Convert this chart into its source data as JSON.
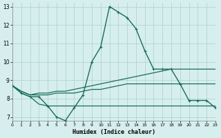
{
  "xlabel": "Humidex (Indice chaleur)",
  "background_color": "#d6eeee",
  "grid_color": "#a8d0d0",
  "line_color": "#1a6b5a",
  "xlim": [
    0,
    23
  ],
  "ylim": [
    6.8,
    13.2
  ],
  "yticks": [
    7,
    8,
    9,
    10,
    11,
    12,
    13
  ],
  "xticks": [
    0,
    1,
    2,
    3,
    4,
    5,
    6,
    7,
    8,
    9,
    10,
    11,
    12,
    13,
    14,
    15,
    16,
    17,
    18,
    19,
    20,
    21,
    22,
    23
  ],
  "series": [
    {
      "x": [
        0,
        1,
        2,
        3,
        4,
        5,
        6,
        7,
        8,
        9,
        10,
        11,
        12,
        13,
        14,
        15,
        16,
        17,
        18,
        19,
        20,
        21,
        22,
        23
      ],
      "y": [
        8.7,
        8.3,
        8.1,
        8.1,
        7.6,
        7.0,
        6.8,
        7.5,
        8.2,
        10.0,
        10.8,
        13.0,
        12.7,
        12.4,
        11.8,
        10.6,
        9.6,
        9.6,
        9.6,
        8.8,
        7.9,
        7.9,
        7.9,
        7.5
      ],
      "marker": true,
      "linewidth": 1.0
    },
    {
      "x": [
        0,
        1,
        2,
        3,
        4,
        5,
        6,
        7,
        8,
        9,
        10,
        11,
        12,
        13,
        14,
        15,
        16,
        17,
        18,
        19,
        20,
        21,
        22,
        23
      ],
      "y": [
        8.7,
        8.4,
        8.2,
        8.3,
        8.3,
        8.4,
        8.4,
        8.5,
        8.6,
        8.7,
        8.8,
        8.9,
        9.0,
        9.1,
        9.2,
        9.3,
        9.4,
        9.5,
        9.6,
        9.6,
        9.6,
        9.6,
        9.6,
        9.6
      ],
      "marker": false,
      "linewidth": 0.9
    },
    {
      "x": [
        0,
        1,
        2,
        3,
        4,
        5,
        6,
        7,
        8,
        9,
        10,
        11,
        12,
        13,
        14,
        15,
        16,
        17,
        18,
        19,
        20,
        21,
        22,
        23
      ],
      "y": [
        8.7,
        8.4,
        8.2,
        8.2,
        8.2,
        8.3,
        8.3,
        8.3,
        8.4,
        8.5,
        8.5,
        8.6,
        8.7,
        8.8,
        8.8,
        8.8,
        8.8,
        8.8,
        8.8,
        8.8,
        8.8,
        8.8,
        8.8,
        8.8
      ],
      "marker": false,
      "linewidth": 0.9
    },
    {
      "x": [
        0,
        1,
        2,
        3,
        4,
        5,
        6,
        7,
        8,
        9,
        10,
        11,
        12,
        13,
        14,
        15,
        16,
        17,
        18,
        19,
        20,
        21,
        22,
        23
      ],
      "y": [
        8.7,
        8.3,
        8.1,
        7.7,
        7.6,
        7.6,
        7.6,
        7.6,
        7.6,
        7.6,
        7.6,
        7.6,
        7.6,
        7.6,
        7.6,
        7.6,
        7.6,
        7.6,
        7.6,
        7.6,
        7.6,
        7.6,
        7.6,
        7.6
      ],
      "marker": false,
      "linewidth": 0.9
    }
  ]
}
